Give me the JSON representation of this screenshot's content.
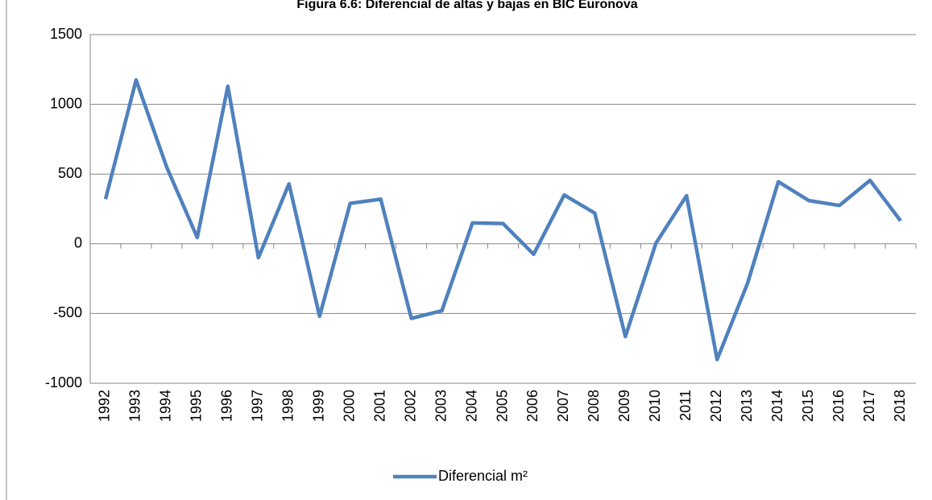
{
  "chart_data": {
    "type": "line",
    "title": "Figura 6.6: Diferencial de altas y bajas en BIC Euronova",
    "categories": [
      "1992",
      "1993",
      "1994",
      "1995",
      "1996",
      "1997",
      "1998",
      "1999",
      "2000",
      "2001",
      "2002",
      "2003",
      "2004",
      "2005",
      "2006",
      "2007",
      "2008",
      "2009",
      "2010",
      "2011",
      "2012",
      "2013",
      "2014",
      "2015",
      "2016",
      "2017",
      "2018"
    ],
    "series": [
      {
        "name": "Diferencial m²",
        "color": "#4f81bd",
        "values": [
          320,
          1175,
          550,
          45,
          1130,
          -100,
          430,
          -520,
          290,
          320,
          -535,
          -480,
          150,
          145,
          -75,
          350,
          220,
          -665,
          5,
          345,
          -830,
          -280,
          445,
          310,
          275,
          455,
          165
        ]
      }
    ],
    "ylim": [
      -1000,
      1500
    ],
    "yticks": [
      -1000,
      -500,
      0,
      500,
      1000,
      1500
    ],
    "grid": true,
    "legend": "bottom"
  }
}
